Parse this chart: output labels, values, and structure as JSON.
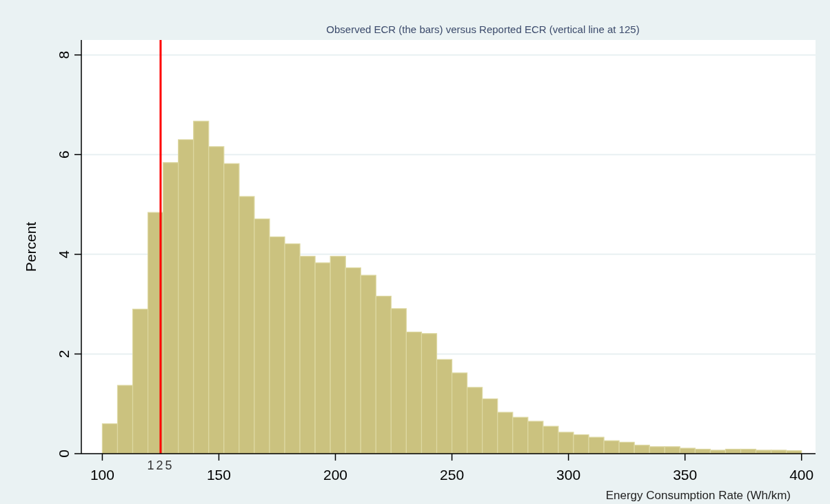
{
  "chart_data": {
    "type": "histogram",
    "title": "Observed ECR (the bars) versus Reported ECR (vertical line at 125)",
    "xlabel": "Energy Consumption Rate (Wh/km)",
    "ylabel": "Percent",
    "bins": [
      100,
      106.52,
      113.04,
      119.57,
      126.09,
      132.61,
      139.13,
      145.65,
      152.17,
      158.7,
      165.22,
      171.74,
      178.26,
      184.78,
      191.3,
      197.83,
      204.35,
      210.87,
      217.39,
      223.91,
      230.43,
      236.96,
      243.48,
      250,
      256.52,
      263.04,
      269.57,
      276.09,
      282.61,
      289.13,
      295.65,
      302.17,
      308.7,
      315.22,
      321.74,
      328.26,
      334.78,
      341.3,
      347.83,
      354.35,
      360.87,
      367.39,
      373.91,
      380.43,
      386.96,
      393.48,
      400
    ],
    "values": [
      0.6,
      1.37,
      2.9,
      4.84,
      5.84,
      6.3,
      6.67,
      6.16,
      5.82,
      5.16,
      4.71,
      4.35,
      4.21,
      3.96,
      3.83,
      3.96,
      3.73,
      3.58,
      3.16,
      2.91,
      2.44,
      2.41,
      1.89,
      1.62,
      1.33,
      1.1,
      0.83,
      0.73,
      0.65,
      0.55,
      0.43,
      0.38,
      0.33,
      0.26,
      0.23,
      0.17,
      0.14,
      0.14,
      0.11,
      0.09,
      0.07,
      0.09,
      0.09,
      0.07,
      0.07,
      0.06
    ],
    "color": "#cbc27f",
    "xlim": [
      91,
      406
    ],
    "xticks": [
      100,
      150,
      200,
      250,
      300,
      350,
      400
    ],
    "ylim": [
      0,
      8.3
    ],
    "yticks": [
      0,
      2,
      4,
      6,
      8
    ],
    "grid": "y",
    "ref_lines": [
      {
        "axis": "x",
        "value": 125,
        "label": "125",
        "color": "#ff0000"
      }
    ]
  }
}
